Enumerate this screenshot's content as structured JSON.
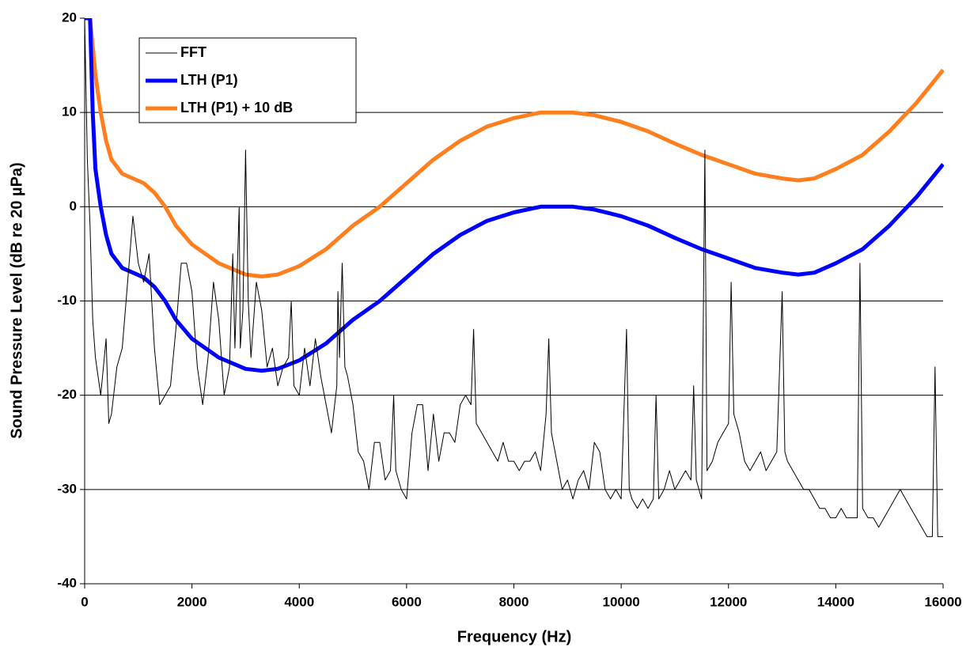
{
  "chart_data": {
    "type": "line",
    "xlabel": "Frequency (Hz)",
    "ylabel": "Sound Pressure Level (dB re 20 µPa)",
    "xlim": [
      0,
      16000
    ],
    "xticks": [
      0,
      2000,
      4000,
      6000,
      8000,
      10000,
      12000,
      14000,
      16000
    ],
    "ylim": [
      -40,
      20
    ],
    "yticks": [
      -40,
      -30,
      -20,
      -10,
      0,
      10,
      20
    ],
    "grid": true,
    "legend": "upper left",
    "series": [
      {
        "name": "FFT",
        "color": "#000000",
        "width": 1,
        "x": [
          0,
          50,
          100,
          150,
          200,
          300,
          400,
          450,
          500,
          600,
          700,
          800,
          900,
          1000,
          1100,
          1200,
          1300,
          1400,
          1500,
          1600,
          1700,
          1800,
          1900,
          2000,
          2100,
          2200,
          2300,
          2400,
          2500,
          2600,
          2700,
          2760,
          2800,
          2880,
          2900,
          2950,
          3000,
          3050,
          3100,
          3200,
          3300,
          3400,
          3500,
          3600,
          3700,
          3800,
          3850,
          3900,
          4000,
          4100,
          4200,
          4300,
          4400,
          4500,
          4600,
          4700,
          4720,
          4750,
          4800,
          4850,
          4900,
          5000,
          5100,
          5200,
          5300,
          5400,
          5500,
          5600,
          5700,
          5760,
          5800,
          5900,
          6000,
          6100,
          6200,
          6300,
          6400,
          6500,
          6600,
          6700,
          6800,
          6900,
          7000,
          7100,
          7200,
          7250,
          7300,
          7400,
          7500,
          7600,
          7700,
          7800,
          7900,
          8000,
          8100,
          8200,
          8300,
          8400,
          8500,
          8600,
          8650,
          8700,
          8800,
          8900,
          9000,
          9100,
          9200,
          9300,
          9400,
          9500,
          9600,
          9700,
          9800,
          9900,
          10000,
          10100,
          10150,
          10200,
          10300,
          10400,
          10500,
          10600,
          10650,
          10700,
          10800,
          10900,
          11000,
          11100,
          11200,
          11300,
          11350,
          11400,
          11500,
          11560,
          11600,
          11700,
          11800,
          11900,
          12000,
          12050,
          12100,
          12200,
          12300,
          12400,
          12500,
          12600,
          12700,
          12800,
          12900,
          13000,
          13050,
          13100,
          13200,
          13300,
          13400,
          13500,
          13600,
          13700,
          13800,
          13900,
          14000,
          14100,
          14200,
          14300,
          14400,
          14450,
          14500,
          14600,
          14700,
          14800,
          14900,
          15000,
          15100,
          15200,
          15300,
          15400,
          15500,
          15600,
          15700,
          15800,
          15850,
          15900,
          16000
        ],
        "values": [
          20,
          5,
          -2,
          -12,
          -16,
          -20,
          -14,
          -23,
          -22,
          -17,
          -15,
          -8,
          -1,
          -6,
          -8,
          -5,
          -15,
          -21,
          -20,
          -19,
          -13,
          -6,
          -6,
          -9,
          -17,
          -21,
          -16,
          -8,
          -12,
          -20,
          -17,
          -5,
          -15,
          0,
          -15,
          -11,
          6,
          -10,
          -16,
          -8,
          -11,
          -17,
          -15,
          -19,
          -17,
          -16,
          -10,
          -19,
          -20,
          -15,
          -19,
          -14,
          -18,
          -21,
          -24,
          -19,
          -9,
          -16,
          -6,
          -17,
          -18,
          -21,
          -26,
          -27,
          -30,
          -25,
          -25,
          -29,
          -28,
          -20,
          -28,
          -30,
          -31,
          -24,
          -21,
          -21,
          -28,
          -22,
          -27,
          -24,
          -24,
          -25,
          -21,
          -20,
          -21,
          -13,
          -23,
          -24,
          -25,
          -26,
          -27,
          -25,
          -27,
          -27,
          -28,
          -27,
          -27,
          -26,
          -28,
          -22,
          -14,
          -24,
          -27,
          -30,
          -29,
          -31,
          -29,
          -28,
          -30,
          -25,
          -26,
          -30,
          -31,
          -30,
          -31,
          -13,
          -30,
          -31,
          -32,
          -31,
          -32,
          -31,
          -20,
          -31,
          -30,
          -28,
          -30,
          -29,
          -28,
          -29,
          -19,
          -29,
          -31,
          6,
          -28,
          -27,
          -25,
          -24,
          -23,
          -8,
          -22,
          -24,
          -27,
          -28,
          -27,
          -26,
          -28,
          -27,
          -26,
          -9,
          -26,
          -27,
          -28,
          -29,
          -30,
          -30,
          -31,
          -32,
          -32,
          -33,
          -33,
          -32,
          -33,
          -33,
          -33,
          -6,
          -32,
          -33,
          -33,
          -34,
          -33,
          -32,
          -31,
          -30,
          -31,
          -32,
          -33,
          -34,
          -35,
          -35,
          -17,
          -35,
          -35
        ]
      },
      {
        "name": "LTH (P1)",
        "color": "#0000ff",
        "width": 5,
        "x": [
          0,
          100,
          150,
          200,
          300,
          400,
          500,
          700,
          900,
          1100,
          1300,
          1500,
          1700,
          2000,
          2500,
          3000,
          3300,
          3600,
          4000,
          4500,
          5000,
          5500,
          6000,
          6500,
          7000,
          7500,
          8000,
          8500,
          9100,
          9500,
          10000,
          10500,
          11000,
          11500,
          12000,
          12500,
          13000,
          13300,
          13600,
          14000,
          14500,
          15000,
          15500,
          16000
        ],
        "values": [
          20,
          20,
          10,
          4,
          0,
          -3,
          -5,
          -6.5,
          -7,
          -7.5,
          -8.5,
          -10,
          -12,
          -14,
          -16,
          -17.2,
          -17.4,
          -17.2,
          -16.3,
          -14.5,
          -12,
          -10,
          -7.5,
          -5,
          -3,
          -1.5,
          -0.6,
          0,
          0,
          -0.3,
          -1,
          -2,
          -3.3,
          -4.5,
          -5.5,
          -6.5,
          -7,
          -7.2,
          -7,
          -6,
          -4.5,
          -2,
          1,
          4.5
        ]
      },
      {
        "name": "LTH (P1) + 10 dB",
        "color": "#ff7f1e",
        "width": 5,
        "x": [
          100,
          200,
          300,
          400,
          500,
          700,
          900,
          1100,
          1300,
          1500,
          1700,
          2000,
          2500,
          3000,
          3300,
          3600,
          4000,
          4500,
          5000,
          5500,
          6000,
          6500,
          7000,
          7500,
          8000,
          8500,
          9100,
          9500,
          10000,
          10500,
          11000,
          11500,
          12000,
          12500,
          13000,
          13300,
          13600,
          14000,
          14500,
          15000,
          15500,
          16000
        ],
        "values": [
          20,
          14,
          10,
          7,
          5,
          3.5,
          3,
          2.5,
          1.5,
          0,
          -2,
          -4,
          -6,
          -7.2,
          -7.4,
          -7.2,
          -6.3,
          -4.5,
          -2,
          0,
          2.5,
          5,
          7,
          8.5,
          9.4,
          10,
          10,
          9.7,
          9,
          8,
          6.7,
          5.5,
          4.5,
          3.5,
          3,
          2.8,
          3,
          4,
          5.5,
          8,
          11,
          14.5
        ]
      }
    ]
  }
}
